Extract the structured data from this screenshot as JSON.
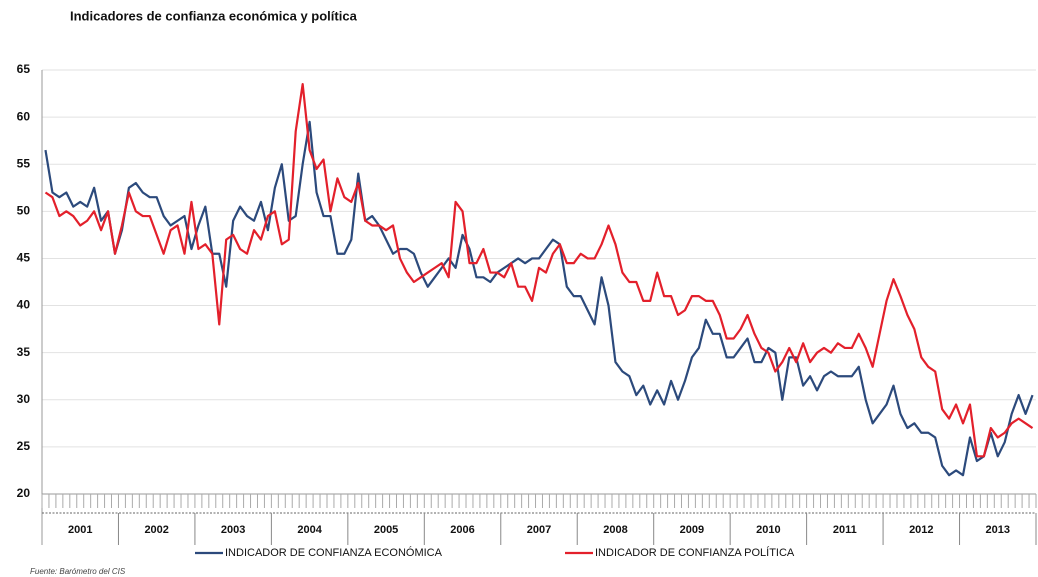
{
  "chart_data": {
    "type": "line",
    "title": "Indicadores de confianza económica y política",
    "source": "Fuente: Barómetro del CIS",
    "categories": [
      "2001",
      null,
      null,
      null,
      null,
      null,
      null,
      null,
      null,
      null,
      null,
      "2002",
      null,
      null,
      null,
      null,
      null,
      null,
      null,
      null,
      null,
      null,
      "2003",
      null,
      null,
      null,
      null,
      null,
      null,
      null,
      null,
      null,
      null,
      "2004",
      null,
      null,
      null,
      null,
      null,
      null,
      null,
      null,
      null,
      null,
      "2005",
      null,
      null,
      null,
      null,
      null,
      null,
      null,
      null,
      null,
      null,
      "2006",
      null,
      null,
      null,
      null,
      null,
      null,
      null,
      null,
      null,
      null,
      "2007",
      null,
      null,
      null,
      null,
      null,
      null,
      null,
      null,
      null,
      null,
      "2008",
      null,
      null,
      null,
      null,
      null,
      null,
      null,
      null,
      null,
      null,
      "2009",
      null,
      null,
      null,
      null,
      null,
      null,
      null,
      null,
      null,
      null,
      "2010",
      null,
      null,
      null,
      null,
      null,
      null,
      null,
      null,
      null,
      null,
      "2011",
      null,
      null,
      null,
      null,
      null,
      null,
      null,
      null,
      null,
      null,
      "2012",
      null,
      null,
      null,
      null,
      null,
      null,
      null,
      null,
      null,
      null,
      "2013",
      null,
      null,
      null,
      null,
      null,
      null,
      null,
      null,
      null,
      null
    ],
    "series": [
      {
        "name": "INDICADOR DE CONFIANZA ECONÓMICA",
        "color": "#2c4a7c",
        "values": [
          56.5,
          52,
          51.5,
          52,
          50.5,
          51,
          50.5,
          52.5,
          49,
          50,
          45.5,
          48,
          52.5,
          53,
          52,
          51.5,
          51.5,
          49.5,
          48.5,
          49,
          49.5,
          46,
          48.5,
          50.5,
          45.5,
          45.5,
          42,
          49,
          50.5,
          49.5,
          49,
          51,
          48,
          52.5,
          55,
          49,
          49.5,
          55,
          59.5,
          52,
          49.5,
          49.5,
          45.5,
          45.5,
          47,
          54,
          49,
          49.5,
          48.5,
          47,
          45.5,
          46,
          46,
          45.5,
          43.5,
          42,
          43,
          44,
          45,
          44,
          47.5,
          46,
          43,
          43,
          42.5,
          43.5,
          44,
          44.5,
          45,
          44.5,
          45,
          45,
          46,
          47,
          46.5,
          42,
          41,
          41,
          39.5,
          38,
          43,
          40,
          34,
          33,
          32.5,
          30.5,
          31.5,
          29.5,
          31,
          29.5,
          32,
          30,
          32,
          34.5,
          35.5,
          38.5,
          37,
          37,
          34.5,
          34.5,
          35.5,
          36.5,
          34,
          34,
          35.5,
          35,
          30,
          34.5,
          34.5,
          31.5,
          32.5,
          31,
          32.5,
          33,
          32.5,
          32.5,
          32.5,
          33.5,
          30,
          27.5,
          28.5,
          29.5,
          31.5,
          28.5,
          27,
          27.5,
          26.5,
          26.5,
          26,
          23,
          22,
          22.5,
          22,
          26,
          23.5,
          24,
          26.5,
          24,
          25.5,
          28.5,
          30.5,
          28.5,
          30.5
        ]
      },
      {
        "name": "INDICADOR DE CONFIANZA POLÍTICA",
        "color": "#e3202b",
        "values": [
          52,
          51.5,
          49.5,
          50,
          49.5,
          48.5,
          49,
          50,
          48,
          50,
          45.5,
          48.5,
          52,
          50,
          49.5,
          49.5,
          47.5,
          45.5,
          48,
          48.5,
          45.5,
          51,
          46,
          46.5,
          45.5,
          38,
          47,
          47.5,
          46,
          45.5,
          48,
          47,
          49.5,
          50,
          46.5,
          47,
          58.5,
          63.5,
          56.5,
          54.5,
          55.5,
          50,
          53.5,
          51.5,
          51,
          53,
          49,
          48.5,
          48.5,
          48,
          48.5,
          45,
          43.5,
          42.5,
          43,
          43.5,
          44,
          44.5,
          43,
          51,
          50,
          44.5,
          44.5,
          46,
          43.5,
          43.5,
          43,
          44.5,
          42,
          42,
          40.5,
          44,
          43.5,
          45.5,
          46.5,
          44.5,
          44.5,
          45.5,
          45,
          45,
          46.5,
          48.5,
          46.5,
          43.5,
          42.5,
          42.5,
          40.5,
          40.5,
          43.5,
          41,
          41,
          39,
          39.5,
          41,
          41,
          40.5,
          40.5,
          39,
          36.5,
          36.5,
          37.5,
          39,
          37,
          35.5,
          35,
          33,
          34,
          35.5,
          34,
          36,
          34,
          35,
          35.5,
          35,
          36,
          35.5,
          35.5,
          37,
          35.5,
          33.5,
          37,
          40.5,
          42.8,
          41,
          39,
          37.5,
          34.5,
          33.5,
          33,
          29,
          28,
          29.5,
          27.5,
          29.5,
          24,
          24,
          27,
          26,
          26.5,
          27.5,
          28,
          27.5,
          27
        ]
      }
    ],
    "ylim": [
      20,
      65
    ],
    "yticks": [
      20,
      25,
      30,
      35,
      40,
      45,
      50,
      55,
      60,
      65
    ],
    "grid": true,
    "legend": "bottom"
  }
}
